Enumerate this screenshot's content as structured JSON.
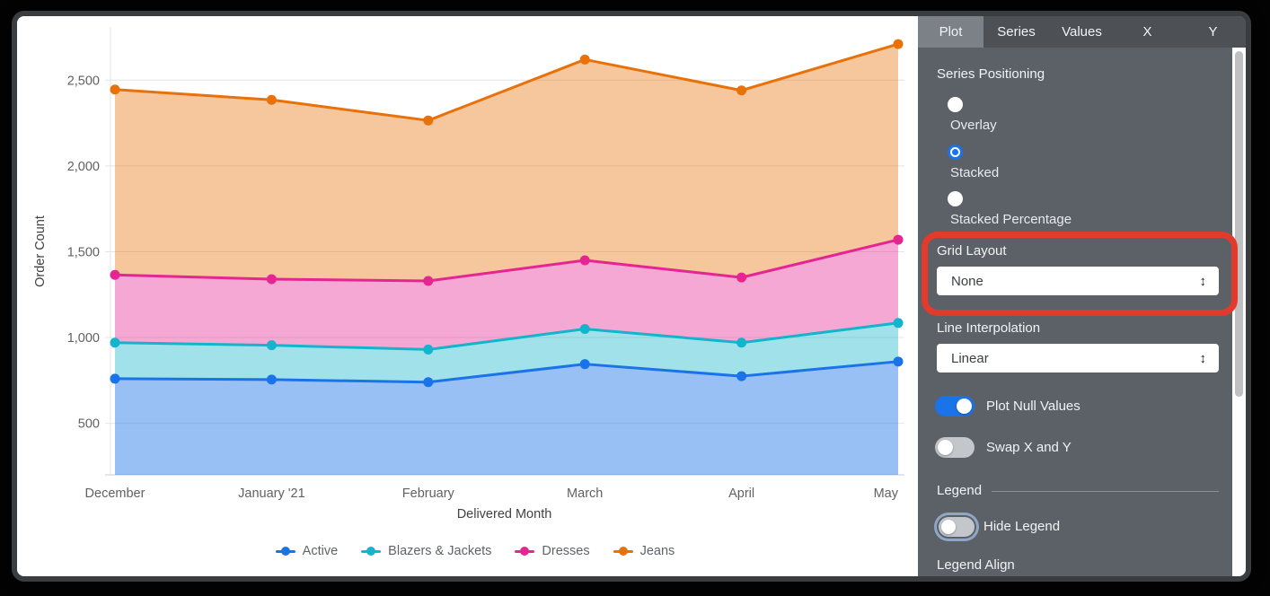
{
  "chart_data": {
    "type": "area",
    "stacked": true,
    "categories": [
      "December",
      "January '21",
      "February",
      "March",
      "April",
      "May"
    ],
    "series": [
      {
        "name": "Active",
        "color": "#1a73e8",
        "values": [
          760,
          755,
          740,
          845,
          775,
          860
        ]
      },
      {
        "name": "Blazers & Jackets",
        "color": "#12b5cb",
        "values": [
          210,
          200,
          190,
          205,
          195,
          225
        ]
      },
      {
        "name": "Dresses",
        "color": "#e52592",
        "values": [
          395,
          385,
          400,
          400,
          380,
          485
        ]
      },
      {
        "name": "Jeans",
        "color": "#e8710a",
        "values": [
          1080,
          1045,
          935,
          1170,
          1090,
          1140
        ]
      }
    ],
    "stacked_totals_note": "cumulative line positions: Active 760/755/740/845/775/860; +Blazers 970/955/930/1050/970/1085; +Dresses 1365/1340/1330/1450/1350/1570; +Jeans 2445/2385/2265/2620/2440/2710",
    "xlabel": "Delivered Month",
    "ylabel": "Order Count",
    "y_ticks": [
      500,
      1000,
      1500,
      2000,
      2500
    ],
    "ylim": [
      200,
      2810
    ],
    "grid": true,
    "legend_position": "bottom"
  },
  "panel": {
    "accent_color": "#1a73e8",
    "tabs": [
      {
        "label": "Plot",
        "active": true
      },
      {
        "label": "Series",
        "active": false
      },
      {
        "label": "Values",
        "active": false
      },
      {
        "label": "X",
        "active": false
      },
      {
        "label": "Y",
        "active": false
      }
    ],
    "series_positioning": {
      "label": "Series Positioning",
      "options": [
        {
          "label": "Overlay",
          "selected": false
        },
        {
          "label": "Stacked",
          "selected": true
        },
        {
          "label": "Stacked Percentage",
          "selected": false
        }
      ]
    },
    "grid_layout": {
      "label": "Grid Layout",
      "value": "None",
      "updown_icon": "↕"
    },
    "line_interpolation": {
      "label": "Line Interpolation",
      "value": "Linear",
      "updown_icon": "↕"
    },
    "toggles": [
      {
        "label": "Plot Null Values",
        "on": true
      },
      {
        "label": "Swap X and Y",
        "on": false
      }
    ],
    "legend_section": {
      "header": "Legend",
      "hide_legend": {
        "label": "Hide Legend",
        "on": false
      },
      "legend_align_label": "Legend Align"
    }
  },
  "annotation": {
    "highlight_color": "#e23a2d",
    "highlighted_control": "Grid Layout"
  }
}
